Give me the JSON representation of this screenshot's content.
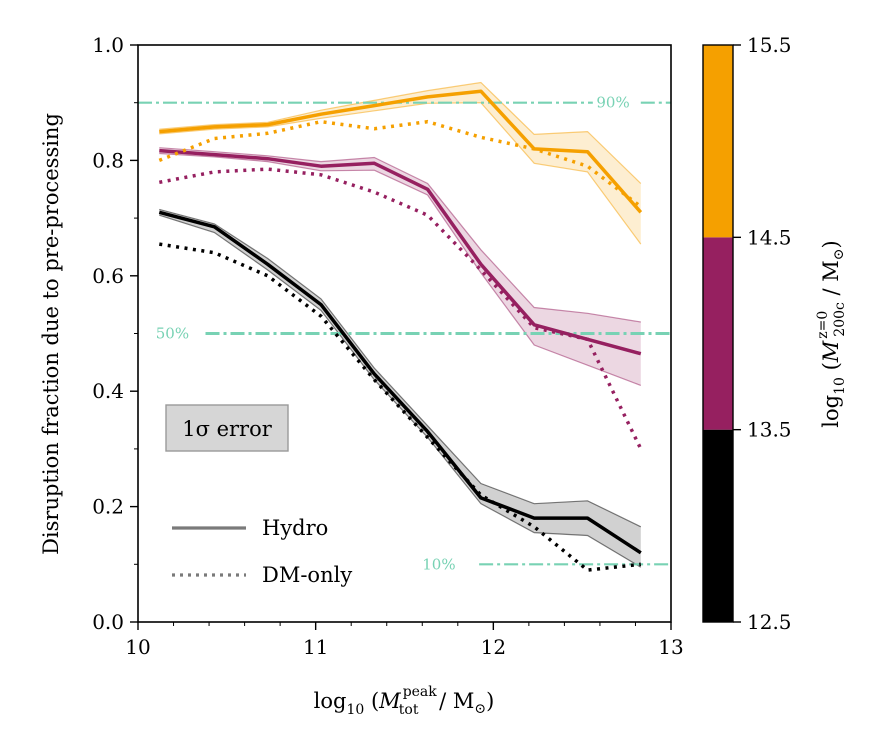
{
  "chart_data": {
    "type": "line",
    "ylabel": "Disruption fraction due to pre-processing",
    "xlabel": {
      "prefix": "log",
      "sub10": "10",
      "var": "M",
      "sup": "peak",
      "sub": "tot",
      "unit": "/ M",
      "sun": "⊙"
    },
    "xlim": [
      10,
      13
    ],
    "ylim": [
      0.0,
      1.0
    ],
    "x_ticks": [
      "10",
      "11",
      "12",
      "13"
    ],
    "y_ticks": [
      "0.0",
      "0.2",
      "0.4",
      "0.6",
      "0.8",
      "1.0"
    ],
    "x": [
      10.12,
      10.43,
      10.73,
      11.03,
      11.33,
      11.63,
      11.93,
      12.23,
      12.53,
      12.83
    ],
    "series": [
      {
        "name": "12.5–13.5",
        "color": "#000000",
        "hydro": [
          0.71,
          0.685,
          0.62,
          0.55,
          0.43,
          0.33,
          0.215,
          0.18,
          0.18,
          0.12
        ],
        "hydro_lower": [
          0.705,
          0.675,
          0.61,
          0.54,
          0.42,
          0.32,
          0.205,
          0.155,
          0.15,
          0.095
        ],
        "hydro_upper": [
          0.715,
          0.69,
          0.63,
          0.56,
          0.44,
          0.34,
          0.24,
          0.205,
          0.21,
          0.165
        ],
        "dmonly": [
          0.655,
          0.64,
          0.6,
          0.53,
          0.42,
          0.32,
          0.22,
          0.165,
          0.09,
          0.1
        ]
      },
      {
        "name": "13.5–14.5",
        "color": "#962060",
        "hydro": [
          0.817,
          0.81,
          0.803,
          0.79,
          0.795,
          0.75,
          0.62,
          0.515,
          0.49,
          0.465
        ],
        "hydro_lower": [
          0.812,
          0.806,
          0.798,
          0.782,
          0.783,
          0.74,
          0.605,
          0.48,
          0.445,
          0.41
        ],
        "hydro_upper": [
          0.822,
          0.815,
          0.808,
          0.798,
          0.805,
          0.76,
          0.645,
          0.545,
          0.535,
          0.52
        ],
        "dmonly": [
          0.762,
          0.78,
          0.785,
          0.775,
          0.745,
          0.705,
          0.61,
          0.51,
          0.49,
          0.3
        ]
      },
      {
        "name": "14.5–15.5",
        "color": "#f5a000",
        "hydro": [
          0.85,
          0.858,
          0.862,
          0.88,
          0.895,
          0.91,
          0.92,
          0.82,
          0.815,
          0.71
        ],
        "hydro_lower": [
          0.846,
          0.854,
          0.858,
          0.873,
          0.886,
          0.899,
          0.9,
          0.795,
          0.78,
          0.655
        ],
        "hydro_upper": [
          0.854,
          0.862,
          0.866,
          0.887,
          0.904,
          0.921,
          0.935,
          0.845,
          0.85,
          0.76
        ],
        "dmonly": [
          0.8,
          0.838,
          0.847,
          0.867,
          0.855,
          0.867,
          0.84,
          0.82,
          0.79,
          0.72
        ]
      }
    ],
    "reference_lines": [
      {
        "y": 0.9,
        "label": "90%",
        "label_x": 12.58,
        "line_from": 10.0,
        "line_to": 12.56,
        "line_to2_from": 12.83
      },
      {
        "y": 0.5,
        "label": "50%",
        "label_x": 10.1,
        "line_from": 10.38,
        "line_to": 13.0
      },
      {
        "y": 0.1,
        "label": "10%",
        "label_x": 11.6,
        "line_from": 11.92,
        "line_to": 13.0
      }
    ],
    "legend": {
      "error_label": "1σ error",
      "hydro_label": "Hydro",
      "dmonly_label": "DM-only"
    },
    "colorbar": {
      "label": "log10 (M z=0 200c / M⊙)",
      "ticks": [
        "12.5",
        "13.5",
        "14.5",
        "15.5"
      ],
      "bands": [
        {
          "from": 12.5,
          "to": 13.5,
          "color": "#000000"
        },
        {
          "from": 13.5,
          "to": 14.5,
          "color": "#962060"
        },
        {
          "from": 14.5,
          "to": 15.5,
          "color": "#f5a000"
        }
      ],
      "range": [
        12.5,
        15.5
      ]
    },
    "ref_color": "#78d2b4"
  }
}
